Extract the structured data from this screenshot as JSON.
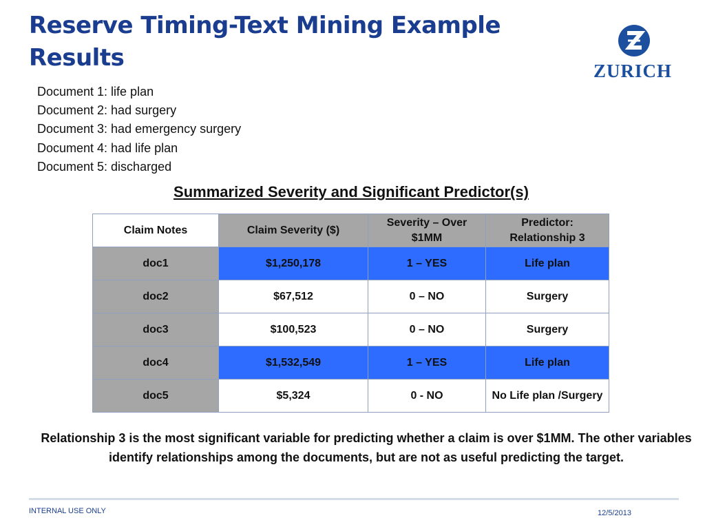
{
  "title": "Reserve Timing-Text Mining Example Results",
  "logo": {
    "text": "ZURICH",
    "brand_color": "#1d4f9f"
  },
  "documents": [
    "Document 1: life plan",
    "Document 2: had surgery",
    "Document 3: had emergency surgery",
    "Document 4: had life plan",
    "Document 5: discharged"
  ],
  "table_title": "Summarized Severity and Significant Predictor(s)",
  "table": {
    "headers": [
      "Claim Notes",
      "Claim Severity ($)",
      "Severity – Over $1MM",
      "Predictor: Relationship 3"
    ],
    "rows": [
      [
        "doc1",
        "$1,250,178",
        "1 – YES",
        "Life plan"
      ],
      [
        "doc2",
        "$67,512",
        "0 – NO",
        "Surgery"
      ],
      [
        "doc3",
        "$100,523",
        "0 – NO",
        "Surgery"
      ],
      [
        "doc4",
        "$1,532,549",
        "1 – YES",
        "Life plan"
      ],
      [
        "doc5",
        "$5,324",
        "0 - NO",
        "No Life plan /Surgery"
      ]
    ],
    "highlight_color": "#2e6bff",
    "gray_color": "#a6a6a6"
  },
  "conclusion": "Relationship 3 is the most significant variable for predicting whether a claim is over $1MM.  The other variables identify relationships among the documents, but are not as useful predicting the target.",
  "footer": {
    "left": "INTERNAL USE ONLY",
    "right": "12/5/2013"
  }
}
